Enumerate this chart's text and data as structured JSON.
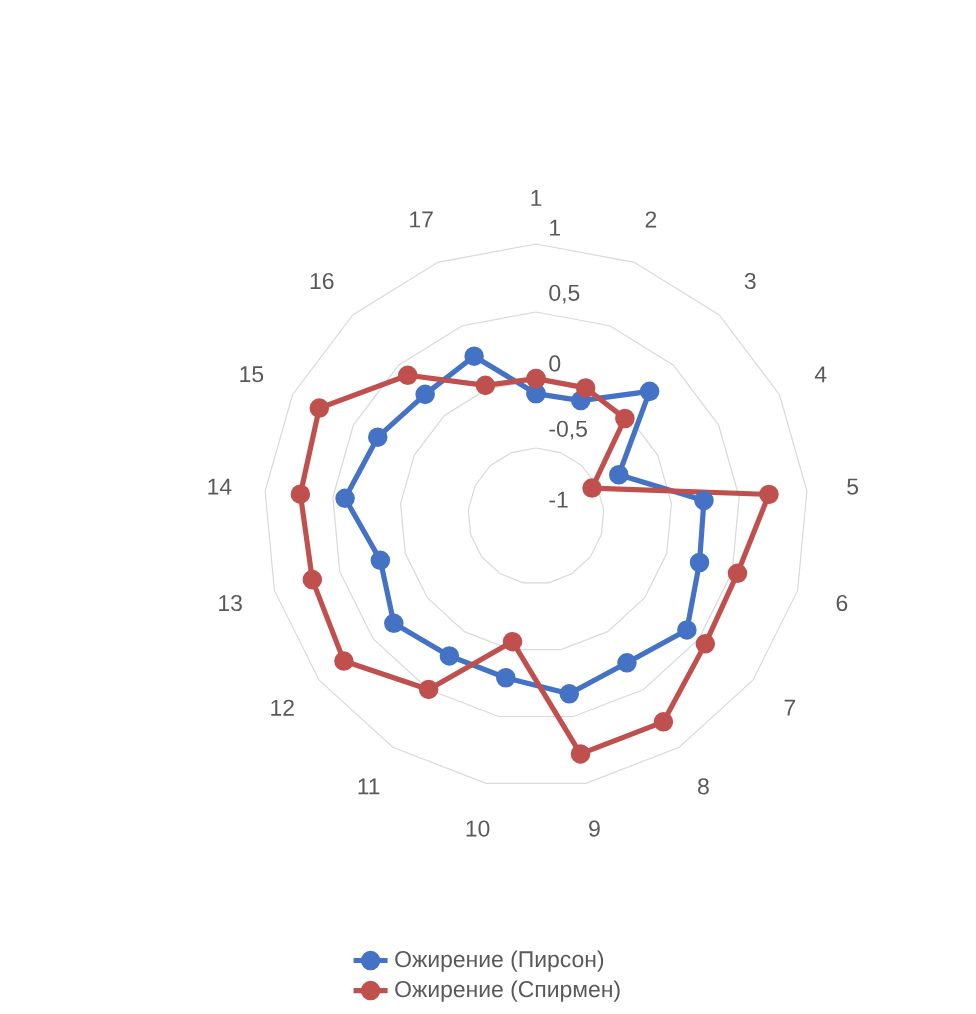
{
  "chart_data": {
    "type": "radar",
    "categories": [
      "1",
      "2",
      "3",
      "4",
      "5",
      "6",
      "7",
      "8",
      "9",
      "10",
      "11",
      "12",
      "13",
      "14",
      "15",
      "16",
      "17"
    ],
    "ylim": [
      -1,
      1
    ],
    "yticks": [
      -1,
      {
        "value": -0.5,
        "label": "-0,5"
      },
      0,
      {
        "value": 0.5,
        "label": "0,5"
      },
      1
    ],
    "grid": true,
    "marker": "circle",
    "legend": "bottom",
    "series": [
      {
        "name": "Ожирение (Пирсон)",
        "color": "#4472c4",
        "values": [
          -0.1,
          -0.09,
          0.24,
          -0.32,
          0.24,
          0.25,
          0.39,
          0.27,
          0.33,
          0.21,
          0.21,
          0.31,
          0.19,
          0.41,
          0.3,
          0.21,
          0.26
        ]
      },
      {
        "name": "Ожирение (Спирмен)",
        "color": "#c0504d",
        "values": [
          0.01,
          0.01,
          -0.03,
          -0.54,
          0.72,
          0.54,
          0.56,
          0.78,
          0.78,
          -0.06,
          0.5,
          0.77,
          0.71,
          0.74,
          0.78,
          0.4,
          0.03
        ]
      }
    ]
  }
}
